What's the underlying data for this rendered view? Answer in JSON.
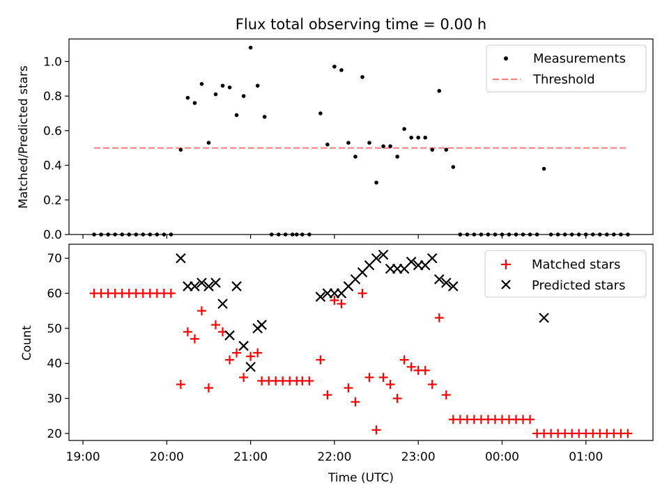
{
  "title": "Flux total observing time = 0.00 h",
  "chart_data": [
    {
      "type": "scatter",
      "ylabel": "Matched/Predicted stars",
      "ylim": [
        0,
        1.13
      ],
      "yticks": [
        0.0,
        0.2,
        0.4,
        0.6,
        0.8,
        1.0
      ],
      "ytick_labels": [
        "0.0",
        "0.2",
        "0.4",
        "0.6",
        "0.8",
        "1.0"
      ],
      "legend_position": "top-right",
      "legend": [
        "Measurements",
        "Threshold"
      ],
      "measurements": {
        "name": "Measurements",
        "color": "#000000",
        "points": [
          [
            "19:08",
            0
          ],
          [
            "19:13",
            0
          ],
          [
            "19:18",
            0
          ],
          [
            "19:23",
            0
          ],
          [
            "19:28",
            0
          ],
          [
            "19:33",
            0
          ],
          [
            "19:38",
            0
          ],
          [
            "19:43",
            0
          ],
          [
            "19:48",
            0
          ],
          [
            "19:53",
            0
          ],
          [
            "19:58",
            0
          ],
          [
            "20:03",
            0
          ],
          [
            "20:10",
            0.49
          ],
          [
            "20:15",
            0.79
          ],
          [
            "20:20",
            0.76
          ],
          [
            "20:25",
            0.87
          ],
          [
            "20:30",
            0.53
          ],
          [
            "20:35",
            0.81
          ],
          [
            "20:40",
            0.86
          ],
          [
            "20:45",
            0.85
          ],
          [
            "20:50",
            0.69
          ],
          [
            "20:55",
            0.8
          ],
          [
            "21:00",
            1.08
          ],
          [
            "21:05",
            0.86
          ],
          [
            "21:10",
            0.68
          ],
          [
            "21:15",
            0
          ],
          [
            "21:20",
            0
          ],
          [
            "21:25",
            0
          ],
          [
            "21:30",
            0
          ],
          [
            "21:33",
            0
          ],
          [
            "21:37",
            0
          ],
          [
            "21:42",
            0
          ],
          [
            "21:50",
            0.7
          ],
          [
            "21:55",
            0.52
          ],
          [
            "22:00",
            0.97
          ],
          [
            "22:05",
            0.95
          ],
          [
            "22:10",
            0.53
          ],
          [
            "22:15",
            0.45
          ],
          [
            "22:20",
            0.91
          ],
          [
            "22:25",
            0.53
          ],
          [
            "22:30",
            0.3
          ],
          [
            "22:35",
            0.51
          ],
          [
            "22:40",
            0.51
          ],
          [
            "22:45",
            0.45
          ],
          [
            "22:50",
            0.61
          ],
          [
            "22:55",
            0.56
          ],
          [
            "23:00",
            0.56
          ],
          [
            "23:05",
            0.56
          ],
          [
            "23:10",
            0.49
          ],
          [
            "23:15",
            0.83
          ],
          [
            "23:20",
            0.49
          ],
          [
            "23:25",
            0.39
          ],
          [
            "23:30",
            0
          ],
          [
            "23:35",
            0
          ],
          [
            "23:40",
            0
          ],
          [
            "23:45",
            0
          ],
          [
            "23:50",
            0
          ],
          [
            "23:55",
            0
          ],
          [
            "00:00",
            0
          ],
          [
            "00:05",
            0
          ],
          [
            "00:10",
            0
          ],
          [
            "00:15",
            0
          ],
          [
            "00:20",
            0
          ],
          [
            "00:25",
            0
          ],
          [
            "00:30",
            0.38
          ],
          [
            "00:35",
            0
          ],
          [
            "00:40",
            0
          ],
          [
            "00:45",
            0
          ],
          [
            "00:50",
            0
          ],
          [
            "00:55",
            0
          ],
          [
            "01:00",
            0
          ],
          [
            "01:05",
            0
          ],
          [
            "01:10",
            0
          ],
          [
            "01:15",
            0
          ],
          [
            "01:20",
            0
          ],
          [
            "01:25",
            0
          ],
          [
            "01:30",
            0
          ]
        ]
      },
      "threshold": {
        "name": "Threshold",
        "value": 0.5,
        "x_start": "19:08",
        "x_end": "01:30",
        "color": "#ff7f7f",
        "style": "dashed"
      }
    },
    {
      "type": "scatter",
      "xlabel": "Time (UTC)",
      "ylabel": "Count",
      "ylim": [
        18,
        74
      ],
      "yticks": [
        20,
        30,
        40,
        50,
        60,
        70
      ],
      "ytick_labels": [
        "20",
        "30",
        "40",
        "50",
        "60",
        "70"
      ],
      "xticks": [
        "19:00",
        "20:00",
        "21:00",
        "22:00",
        "23:00",
        "00:00",
        "01:00"
      ],
      "x_range": [
        "18:50",
        "01:48"
      ],
      "legend_position": "top-right",
      "legend": [
        "Matched stars",
        "Predicted stars"
      ],
      "series": [
        {
          "name": "Matched stars",
          "marker": "plus",
          "color": "#ff0000",
          "points": [
            [
              "19:08",
              60
            ],
            [
              "19:13",
              60
            ],
            [
              "19:18",
              60
            ],
            [
              "19:23",
              60
            ],
            [
              "19:28",
              60
            ],
            [
              "19:33",
              60
            ],
            [
              "19:38",
              60
            ],
            [
              "19:43",
              60
            ],
            [
              "19:48",
              60
            ],
            [
              "19:53",
              60
            ],
            [
              "19:58",
              60
            ],
            [
              "20:03",
              60
            ],
            [
              "20:10",
              34
            ],
            [
              "20:15",
              49
            ],
            [
              "20:20",
              47
            ],
            [
              "20:25",
              55
            ],
            [
              "20:30",
              33
            ],
            [
              "20:35",
              51
            ],
            [
              "20:40",
              49
            ],
            [
              "20:45",
              41
            ],
            [
              "20:50",
              43
            ],
            [
              "20:55",
              36
            ],
            [
              "21:00",
              42
            ],
            [
              "21:05",
              43
            ],
            [
              "21:08",
              35
            ],
            [
              "21:13",
              35
            ],
            [
              "21:18",
              35
            ],
            [
              "21:23",
              35
            ],
            [
              "21:28",
              35
            ],
            [
              "21:33",
              35
            ],
            [
              "21:37",
              35
            ],
            [
              "21:42",
              35
            ],
            [
              "21:50",
              41
            ],
            [
              "21:55",
              31
            ],
            [
              "22:00",
              58
            ],
            [
              "22:05",
              57
            ],
            [
              "22:10",
              33
            ],
            [
              "22:15",
              29
            ],
            [
              "22:20",
              60
            ],
            [
              "22:25",
              36
            ],
            [
              "22:30",
              21
            ],
            [
              "22:35",
              36
            ],
            [
              "22:40",
              34
            ],
            [
              "22:45",
              30
            ],
            [
              "22:50",
              41
            ],
            [
              "22:55",
              39
            ],
            [
              "23:00",
              38
            ],
            [
              "23:05",
              38
            ],
            [
              "23:10",
              34
            ],
            [
              "23:15",
              53
            ],
            [
              "23:20",
              31
            ],
            [
              "23:25",
              24
            ],
            [
              "23:30",
              24
            ],
            [
              "23:35",
              24
            ],
            [
              "23:40",
              24
            ],
            [
              "23:45",
              24
            ],
            [
              "23:50",
              24
            ],
            [
              "23:55",
              24
            ],
            [
              "00:00",
              24
            ],
            [
              "00:05",
              24
            ],
            [
              "00:10",
              24
            ],
            [
              "00:15",
              24
            ],
            [
              "00:20",
              24
            ],
            [
              "00:25",
              20
            ],
            [
              "00:30",
              20
            ],
            [
              "00:35",
              20
            ],
            [
              "00:40",
              20
            ],
            [
              "00:45",
              20
            ],
            [
              "00:50",
              20
            ],
            [
              "00:55",
              20
            ],
            [
              "01:00",
              20
            ],
            [
              "01:05",
              20
            ],
            [
              "01:10",
              20
            ],
            [
              "01:15",
              20
            ],
            [
              "01:20",
              20
            ],
            [
              "01:25",
              20
            ],
            [
              "01:30",
              20
            ]
          ]
        },
        {
          "name": "Predicted stars",
          "marker": "x",
          "color": "#000000",
          "points": [
            [
              "20:10",
              70
            ],
            [
              "20:15",
              62
            ],
            [
              "20:20",
              62
            ],
            [
              "20:25",
              63
            ],
            [
              "20:30",
              62
            ],
            [
              "20:35",
              63
            ],
            [
              "20:40",
              57
            ],
            [
              "20:45",
              48
            ],
            [
              "20:50",
              62
            ],
            [
              "20:55",
              45
            ],
            [
              "21:00",
              39
            ],
            [
              "21:05",
              50
            ],
            [
              "21:08",
              51
            ],
            [
              "21:50",
              59
            ],
            [
              "21:55",
              60
            ],
            [
              "22:00",
              60
            ],
            [
              "22:05",
              60
            ],
            [
              "22:10",
              62
            ],
            [
              "22:15",
              64
            ],
            [
              "22:20",
              66
            ],
            [
              "22:25",
              68
            ],
            [
              "22:30",
              70
            ],
            [
              "22:35",
              71
            ],
            [
              "22:40",
              67
            ],
            [
              "22:45",
              67
            ],
            [
              "22:50",
              67
            ],
            [
              "22:55",
              69
            ],
            [
              "23:00",
              68
            ],
            [
              "23:05",
              68
            ],
            [
              "23:10",
              70
            ],
            [
              "23:15",
              64
            ],
            [
              "23:20",
              63
            ],
            [
              "23:25",
              62
            ],
            [
              "00:30",
              53
            ]
          ]
        }
      ]
    }
  ]
}
